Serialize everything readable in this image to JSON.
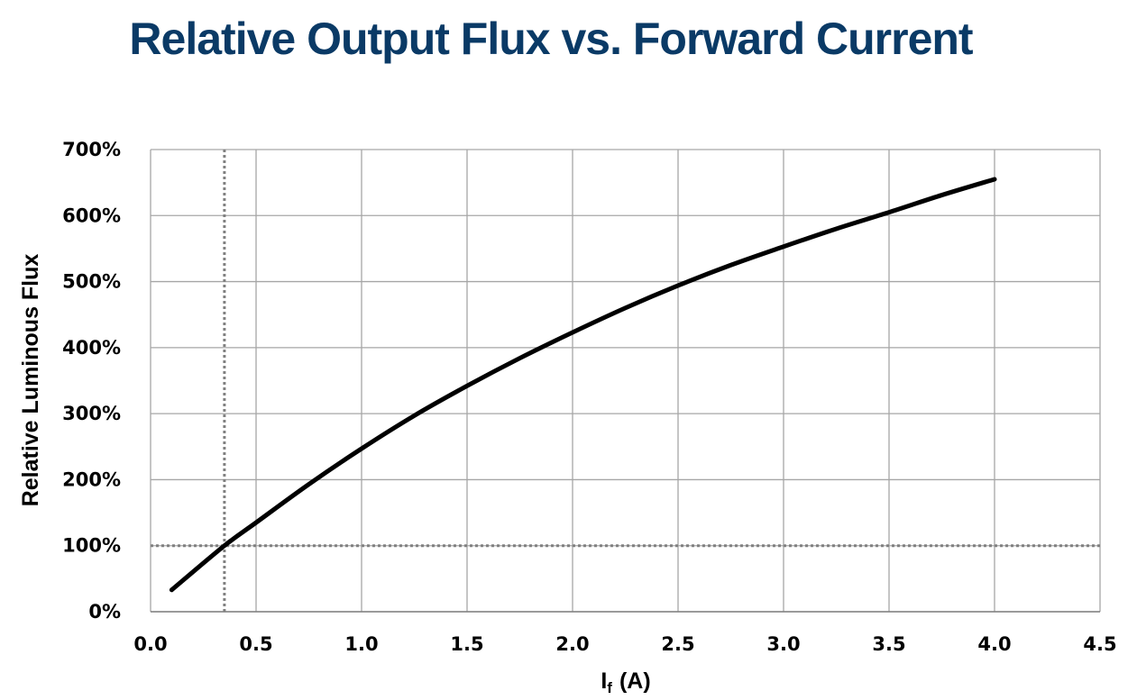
{
  "chart_data": {
    "type": "line",
    "title": "Relative Output Flux vs. Forward Current",
    "ylabel": "Relative Luminous Flux",
    "xlabel_main": "I",
    "xlabel_sub": "f",
    "xlabel_unit": "(A)",
    "xlim": [
      0.0,
      4.5
    ],
    "ylim": [
      0,
      700
    ],
    "xticks": [
      "0.0",
      "0.5",
      "1.0",
      "1.5",
      "2.0",
      "2.5",
      "3.0",
      "3.5",
      "4.0",
      "4.5"
    ],
    "yticks": [
      "0%",
      "100%",
      "200%",
      "300%",
      "400%",
      "500%",
      "600%",
      "700%"
    ],
    "grid": true,
    "series": [
      {
        "x": [
          0.1,
          0.35,
          0.5,
          0.75,
          1.0,
          1.25,
          1.5,
          1.75,
          2.0,
          2.25,
          2.5,
          2.75,
          3.0,
          3.25,
          3.5,
          3.75,
          4.0
        ],
        "y": [
          33,
          100,
          135,
          193,
          247,
          297,
          342,
          384,
          423,
          460,
          494,
          525,
          553,
          580,
          605,
          631,
          655
        ]
      }
    ],
    "reference_lines": {
      "x": 0.35,
      "y": 100
    },
    "line_color": "#000000",
    "grid_color": "#a6a6a6",
    "reference_color": "#808080",
    "title_color": "#0a3a66"
  }
}
